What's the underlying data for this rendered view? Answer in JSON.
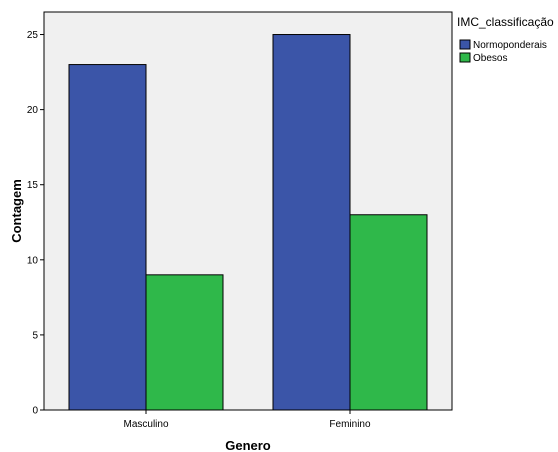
{
  "chart_data": {
    "type": "bar",
    "categories": [
      "Masculino",
      "Feminino"
    ],
    "series": [
      {
        "name": "Normoponderais",
        "values": [
          23,
          25
        ],
        "color": "#3b55a8"
      },
      {
        "name": "Obesos",
        "values": [
          9,
          13
        ],
        "color": "#2fb84a"
      }
    ],
    "xlabel": "Genero",
    "ylabel": "Contagem",
    "ylim": [
      0,
      26.5
    ],
    "yticks": [
      0,
      5,
      10,
      15,
      20,
      25
    ],
    "legend_title": "IMC_classificação",
    "legend_position": "top-right",
    "grid": false,
    "plot_background": "#f0f0f0"
  }
}
